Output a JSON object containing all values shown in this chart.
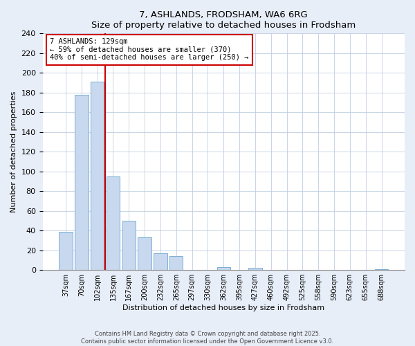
{
  "title1": "7, ASHLANDS, FRODSHAM, WA6 6RG",
  "title2": "Size of property relative to detached houses in Frodsham",
  "xlabel": "Distribution of detached houses by size in Frodsham",
  "ylabel": "Number of detached properties",
  "bar_labels": [
    "37sqm",
    "70sqm",
    "102sqm",
    "135sqm",
    "167sqm",
    "200sqm",
    "232sqm",
    "265sqm",
    "297sqm",
    "330sqm",
    "362sqm",
    "395sqm",
    "427sqm",
    "460sqm",
    "492sqm",
    "525sqm",
    "558sqm",
    "590sqm",
    "623sqm",
    "655sqm",
    "688sqm"
  ],
  "bar_values": [
    39,
    178,
    191,
    95,
    50,
    33,
    17,
    14,
    0,
    0,
    3,
    0,
    2,
    0,
    0,
    0,
    0,
    0,
    0,
    0,
    1
  ],
  "bar_color": "#c8d8ee",
  "bar_edge_color": "#7aafd4",
  "vline_x_idx": 2.5,
  "vline_color": "#cc0000",
  "annotation_text": "7 ASHLANDS: 129sqm\n← 59% of detached houses are smaller (370)\n40% of semi-detached houses are larger (250) →",
  "annotation_box_color": "#ffffff",
  "annotation_box_edge_color": "#cc0000",
  "ylim": [
    0,
    240
  ],
  "yticks": [
    0,
    20,
    40,
    60,
    80,
    100,
    120,
    140,
    160,
    180,
    200,
    220,
    240
  ],
  "footer1": "Contains HM Land Registry data © Crown copyright and database right 2025.",
  "footer2": "Contains public sector information licensed under the Open Government Licence v3.0.",
  "bg_color": "#e8eef8",
  "plot_bg_color": "#ffffff",
  "grid_color": "#c0cfe0"
}
